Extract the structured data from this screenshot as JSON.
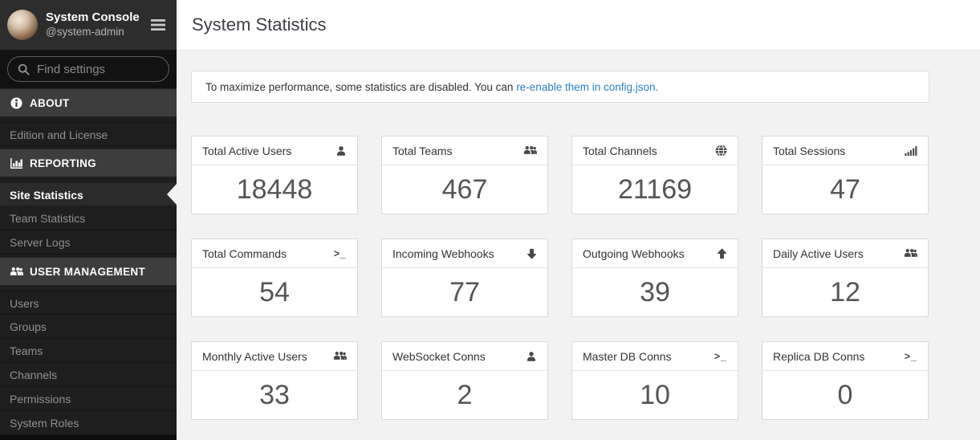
{
  "sidebar": {
    "header": {
      "title": "System Console",
      "subtitle": "@system-admin",
      "menu_icon": "menu-icon"
    },
    "search": {
      "placeholder": "Find settings",
      "icon": "search-icon"
    },
    "sections": [
      {
        "label": "ABOUT",
        "icon": "info-icon",
        "items": [
          {
            "label": "Edition and License",
            "active": false
          }
        ]
      },
      {
        "label": "REPORTING",
        "icon": "bar-chart-icon",
        "items": [
          {
            "label": "Site Statistics",
            "active": true
          },
          {
            "label": "Team Statistics",
            "active": false
          },
          {
            "label": "Server Logs",
            "active": false
          }
        ]
      },
      {
        "label": "USER MANAGEMENT",
        "icon": "users-icon",
        "items": [
          {
            "label": "Users",
            "active": false
          },
          {
            "label": "Groups",
            "active": false
          },
          {
            "label": "Teams",
            "active": false
          },
          {
            "label": "Channels",
            "active": false
          },
          {
            "label": "Permissions",
            "active": false
          },
          {
            "label": "System Roles",
            "active": false
          }
        ]
      }
    ]
  },
  "main": {
    "title": "System Statistics",
    "banner": {
      "text_before_link": "To maximize performance, some statistics are disabled. You can ",
      "link_text": "re-enable them in config.json",
      "text_after_link": "."
    },
    "cards": [
      {
        "label": "Total Active Users",
        "value": "18448",
        "icon": "user-icon"
      },
      {
        "label": "Total Teams",
        "value": "467",
        "icon": "users-icon"
      },
      {
        "label": "Total Channels",
        "value": "21169",
        "icon": "globe-icon"
      },
      {
        "label": "Total Sessions",
        "value": "47",
        "icon": "signal-bars-icon"
      },
      {
        "label": "Total Commands",
        "value": "54",
        "icon": "terminal-icon"
      },
      {
        "label": "Incoming Webhooks",
        "value": "77",
        "icon": "arrow-down-icon"
      },
      {
        "label": "Outgoing Webhooks",
        "value": "39",
        "icon": "arrow-up-icon"
      },
      {
        "label": "Daily Active Users",
        "value": "12",
        "icon": "users-icon"
      },
      {
        "label": "Monthly Active Users",
        "value": "33",
        "icon": "users-icon"
      },
      {
        "label": "WebSocket Conns",
        "value": "2",
        "icon": "user-icon"
      },
      {
        "label": "Master DB Conns",
        "value": "10",
        "icon": "terminal-icon"
      },
      {
        "label": "Replica DB Conns",
        "value": "0",
        "icon": "terminal-icon"
      }
    ]
  },
  "colors": {
    "link_blue": "#2a80c9",
    "sidebar_header_bg": "#2d2d2d",
    "sidebar_section_bg": "#3d3d3d",
    "sidebar_item_bg": "#1e1e1e",
    "content_bg": "#f2f2f2",
    "card_value_text": "#555555"
  }
}
